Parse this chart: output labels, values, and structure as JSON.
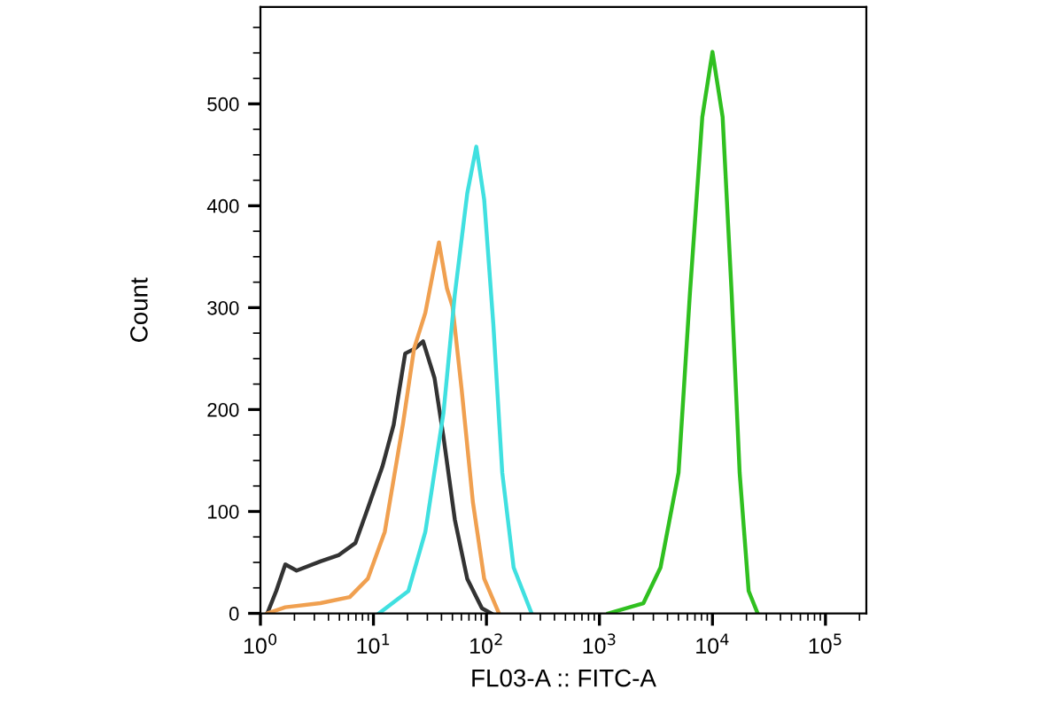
{
  "chart_data": {
    "type": "line",
    "xlabel": "FL03-A :: FITC-A",
    "ylabel": "Count",
    "log": "x",
    "grid": false,
    "marker": "none",
    "line_style": "solid",
    "xlim": [
      1,
      230000
    ],
    "ylim": [
      0,
      595
    ],
    "xticks": [
      {
        "value": 1,
        "label": "10$^{0}$"
      },
      {
        "value": 10,
        "label": "10$^{1}$"
      },
      {
        "value": 100,
        "label": "10$^{2}$"
      },
      {
        "value": 1000,
        "label": "10$^{3}$"
      },
      {
        "value": 10000,
        "label": "10$^{4}$"
      },
      {
        "value": 100000,
        "label": "10$^{5}$"
      }
    ],
    "yticks": [
      0,
      100,
      200,
      300,
      400,
      500
    ],
    "series": [
      {
        "color": "#333333",
        "x": [
          1.15,
          1.38,
          1.66,
          2.09,
          3.39,
          4.9,
          6.92,
          8.91,
          12.0,
          15.1,
          19.1,
          23.4,
          27.5,
          34.7,
          41.7,
          52.5,
          67.6,
          91.2,
          110
        ],
        "values": [
          0,
          22,
          48,
          42,
          51,
          57,
          69,
          103,
          144,
          185,
          255,
          260,
          267,
          231,
          173,
          92,
          34,
          5,
          0
        ]
      },
      {
        "color": "#f0a050",
        "x": [
          1.15,
          1.66,
          3.39,
          6.17,
          8.91,
          12.6,
          18.2,
          22.9,
          28.8,
          33.1,
          38.0,
          44.7,
          50.1,
          60.3,
          75.9,
          95.5,
          129
        ],
        "values": [
          0,
          6,
          10,
          16,
          34,
          80,
          185,
          260,
          295,
          330,
          364,
          319,
          301,
          220,
          109,
          34,
          0
        ]
      },
      {
        "color": "#40e0e0",
        "x": [
          11.2,
          20.4,
          28.8,
          41.7,
          52.5,
          67.6,
          81.3,
          95.5,
          115,
          138,
          174,
          251
        ],
        "values": [
          0,
          22,
          80,
          197,
          313,
          412,
          458,
          406,
          284,
          138,
          45,
          0
        ]
      },
      {
        "color": "#30c020",
        "x": [
          1200,
          2450,
          3470,
          5010,
          6310,
          8130,
          10000,
          12300,
          14800,
          17400,
          20900,
          25100
        ],
        "values": [
          0,
          10,
          45,
          138,
          313,
          487,
          551,
          487,
          313,
          138,
          22,
          0
        ]
      }
    ]
  }
}
